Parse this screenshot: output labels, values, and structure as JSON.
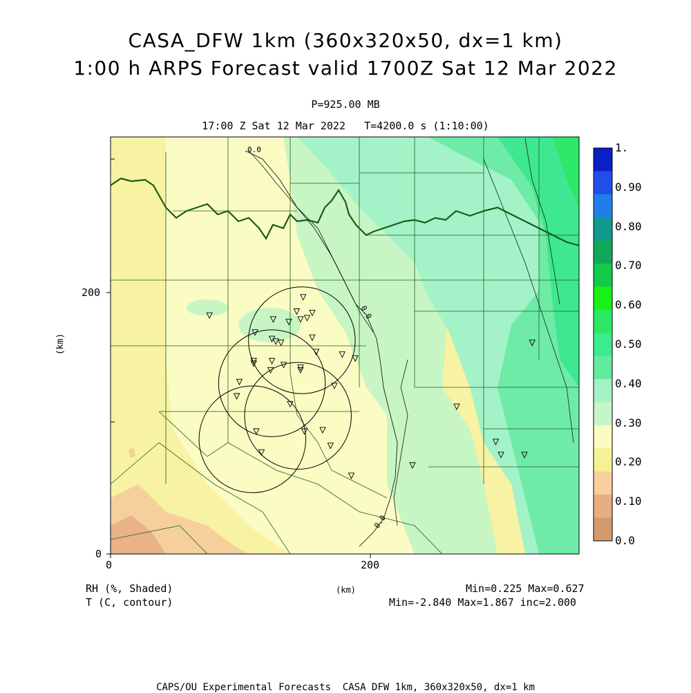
{
  "title": {
    "line1": "CASA_DFW 1km (360x320x50, dx=1 km)",
    "line2": "1:00 h ARPS Forecast valid 1700Z Sat 12 Mar 2022"
  },
  "subtitle": {
    "pressure": "P=925.00 MB",
    "time": "17:00 Z Sat 12 Mar 2022   T=4200.0 s (1:10:00)"
  },
  "axes": {
    "x_ticks": [
      "0",
      "200"
    ],
    "y_ticks": [
      "0",
      "200"
    ],
    "x_unit": "(km)",
    "y_unit": "(km)"
  },
  "legend": {
    "labels": [
      "1.",
      "0.90",
      "0.80",
      "0.70",
      "0.60",
      "0.50",
      "0.40",
      "0.30",
      "0.20",
      "0.10",
      "0.0"
    ],
    "colors": [
      "#0b1ec8",
      "#1f4ee8",
      "#1f7fe8",
      "#10998e",
      "#11a85a",
      "#14c84a",
      "#18f018",
      "#2be860",
      "#3ceb8c",
      "#62eb9e",
      "#a2f2c6",
      "#c6f5c8",
      "#fbfbc2",
      "#f6f192",
      "#f9cd9e",
      "#e8ae82",
      "#d49a6c"
    ]
  },
  "contour_labels": [
    "0.0",
    "0.0",
    "0.0"
  ],
  "footer": {
    "shaded": "RH (%, Shaded)",
    "contour": "T (C, contour)",
    "unit": "(km)",
    "rh_minmax": "Min=0.225 Max=0.627",
    "t_minmax": "Min=-2.840 Max=1.867 inc=2.000",
    "credit": "CAPS/OU Experimental Forecasts  CASA DFW 1km, 360x320x50, dx=1 km"
  },
  "colors": {
    "border_state": "#1a5a1a",
    "county_line": "#1f5f1f",
    "river": "#1a3a1a",
    "contour": "#000000"
  },
  "stations": [
    {
      "x": 76,
      "y": 183
    },
    {
      "x": 148,
      "y": 197
    },
    {
      "x": 143,
      "y": 186
    },
    {
      "x": 155,
      "y": 185
    },
    {
      "x": 125,
      "y": 180
    },
    {
      "x": 137,
      "y": 178
    },
    {
      "x": 146,
      "y": 180
    },
    {
      "x": 151,
      "y": 181
    },
    {
      "x": 111,
      "y": 170
    },
    {
      "x": 124,
      "y": 165
    },
    {
      "x": 127,
      "y": 163
    },
    {
      "x": 131,
      "y": 162
    },
    {
      "x": 155,
      "y": 166
    },
    {
      "x": 158,
      "y": 155
    },
    {
      "x": 178,
      "y": 153
    },
    {
      "x": 188,
      "y": 150
    },
    {
      "x": 110,
      "y": 148
    },
    {
      "x": 110,
      "y": 146
    },
    {
      "x": 124,
      "y": 148
    },
    {
      "x": 133,
      "y": 145
    },
    {
      "x": 123,
      "y": 141
    },
    {
      "x": 146,
      "y": 141
    },
    {
      "x": 146,
      "y": 143
    },
    {
      "x": 99,
      "y": 132
    },
    {
      "x": 97,
      "y": 121
    },
    {
      "x": 138,
      "y": 115
    },
    {
      "x": 172,
      "y": 129
    },
    {
      "x": 112,
      "y": 94
    },
    {
      "x": 149,
      "y": 94
    },
    {
      "x": 163,
      "y": 95
    },
    {
      "x": 169,
      "y": 83
    },
    {
      "x": 116,
      "y": 78
    },
    {
      "x": 232,
      "y": 68
    },
    {
      "x": 185,
      "y": 60
    },
    {
      "x": 266,
      "y": 113
    },
    {
      "x": 296,
      "y": 86
    },
    {
      "x": 300,
      "y": 76
    },
    {
      "x": 318,
      "y": 76
    },
    {
      "x": 324,
      "y": 162
    }
  ],
  "range_rings": [
    {
      "x": 147,
      "y": 164,
      "r": 41
    },
    {
      "x": 124,
      "y": 131,
      "r": 41
    },
    {
      "x": 144,
      "y": 106,
      "r": 41
    },
    {
      "x": 109,
      "y": 88,
      "r": 41
    }
  ]
}
